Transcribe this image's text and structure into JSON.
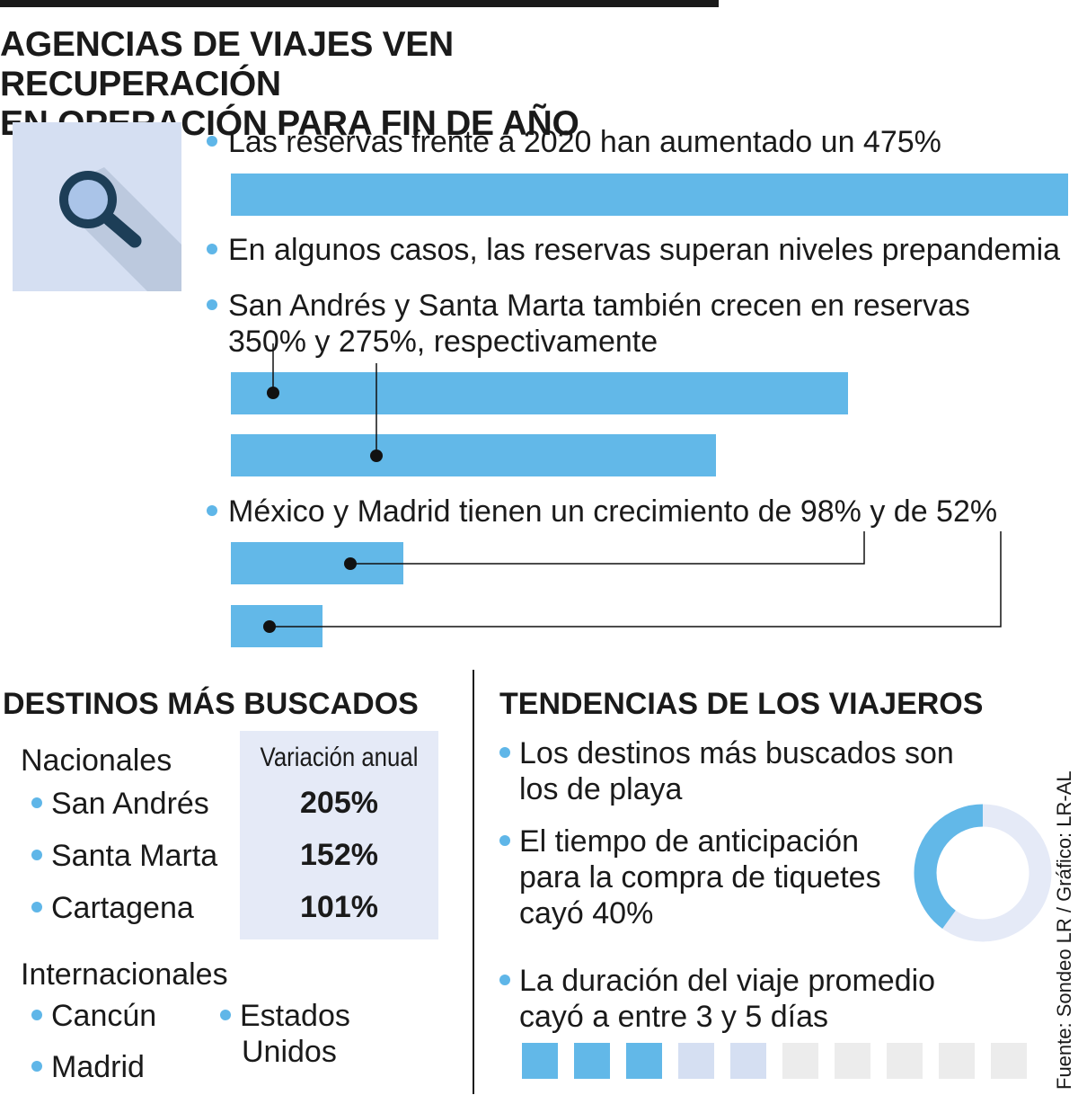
{
  "title": {
    "line1": "AGENCIAS DE VIAJES VEN RECUPERACIÓN",
    "line2": "EN OPERACIÓN PARA FIN DE AÑO"
  },
  "bullets": {
    "b1": "Las reservas frente a 2020 han aumentado un 475%",
    "b2": "En algunos casos, las reservas superan niveles prepandemia",
    "b3_line1": "San Andrés y Santa Marta también crecen en reservas",
    "b3_line2": "350% y 275%, respectivamente",
    "b4": "México y Madrid tienen un crecimiento de 98% y de 52%"
  },
  "chart_data": {
    "type": "bar",
    "orientation": "horizontal",
    "title": "",
    "categories": [
      "Reservas frente a 2020",
      "San Andrés",
      "Santa Marta",
      "México",
      "Madrid"
    ],
    "values": [
      475,
      350,
      275,
      98,
      52
    ],
    "unit": "%",
    "xlabel": "",
    "ylabel": "",
    "xlim": [
      0,
      475
    ]
  },
  "destinos": {
    "title": "DESTINOS MÁS BUSCADOS",
    "nacionales_label": "Nacionales",
    "variacion_label": "Variación anual",
    "nacionales": [
      {
        "name": "San Andrés",
        "value": "205%"
      },
      {
        "name": "Santa Marta",
        "value": "152%"
      },
      {
        "name": "Cartagena",
        "value": "101%"
      }
    ],
    "internacionales_label": "Internacionales",
    "internacionales": [
      "Cancún",
      "Madrid",
      "Estados",
      "Unidos"
    ]
  },
  "tendencias": {
    "title": "TENDENCIAS DE LOS VIAJEROS",
    "t1_line1": "Los destinos más buscados son",
    "t1_line2": "los de playa",
    "t2_line1": "El tiempo de anticipación",
    "t2_line2": "para la compra de tiquetes",
    "t2_line3": "cayó 40%",
    "t3_line1": "La duración del viaje promedio",
    "t3_line2": "cayó a entre 3 y 5 días"
  },
  "donut": {
    "value": 40,
    "total": 100
  },
  "days_scale": {
    "total": 10,
    "min_days": 3,
    "max_days": 5
  },
  "source": "Fuente: Sondeo LR / Gráfico: LR-AL",
  "colors": {
    "accent": "#62b8e8",
    "light": "#d5dff2",
    "grey": "#ececec",
    "dark": "#1a1a1a"
  }
}
